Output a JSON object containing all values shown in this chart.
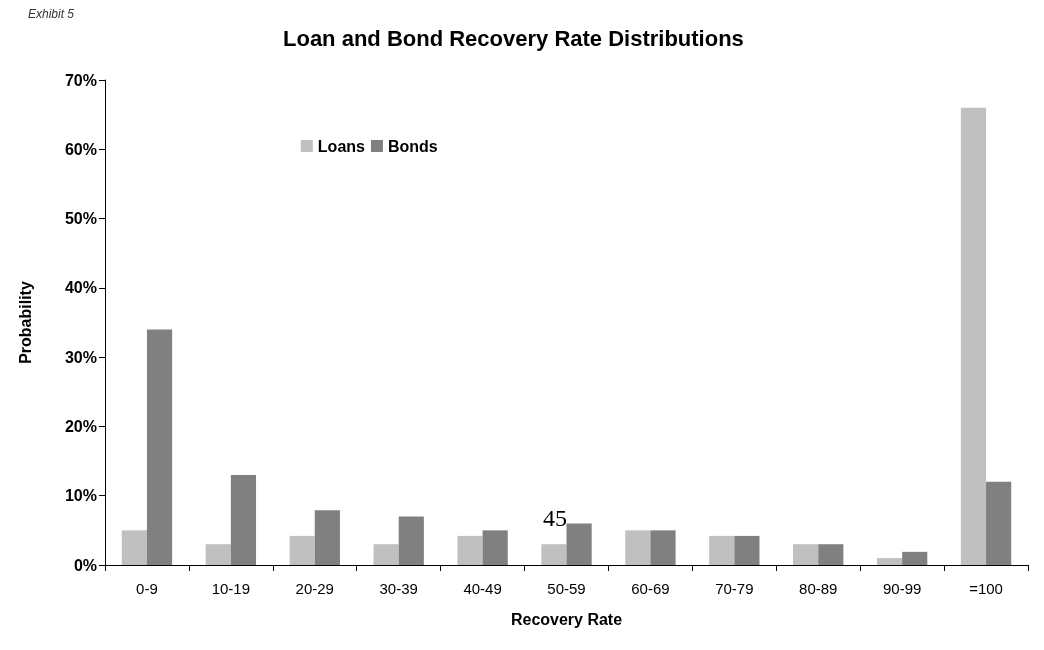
{
  "chart_data": {
    "type": "bar",
    "title": "Loan and Bond Recovery Rate Distributions",
    "xlabel": "Recovery Rate",
    "ylabel": "Probability",
    "categories": [
      "0-9",
      "10-19",
      "20-29",
      "30-39",
      "40-49",
      "50-59",
      "60-69",
      "70-79",
      "80-89",
      "90-99",
      "=100"
    ],
    "series": [
      {
        "name": "Loans",
        "color": "#c0c0c0",
        "values": [
          5,
          3,
          4.2,
          3,
          4.2,
          3,
          5,
          4.2,
          3,
          1,
          66
        ]
      },
      {
        "name": "Bonds",
        "color": "#808080",
        "values": [
          34,
          13,
          7.9,
          7,
          5,
          6,
          5,
          4.2,
          3,
          1.9,
          12
        ]
      }
    ],
    "ylim": [
      0,
      70
    ],
    "yticks": [
      {
        "value": 0,
        "label": "0%"
      },
      {
        "value": 10,
        "label": "10%"
      },
      {
        "value": 20,
        "label": "20%"
      },
      {
        "value": 30,
        "label": "30%"
      },
      {
        "value": 40,
        "label": "40%"
      },
      {
        "value": 50,
        "label": "50%"
      },
      {
        "value": 60,
        "label": "60%"
      },
      {
        "value": 70,
        "label": "70%"
      }
    ],
    "grid": false,
    "legend": "top left",
    "annotations": [
      "Exhibit 5",
      "45"
    ]
  }
}
